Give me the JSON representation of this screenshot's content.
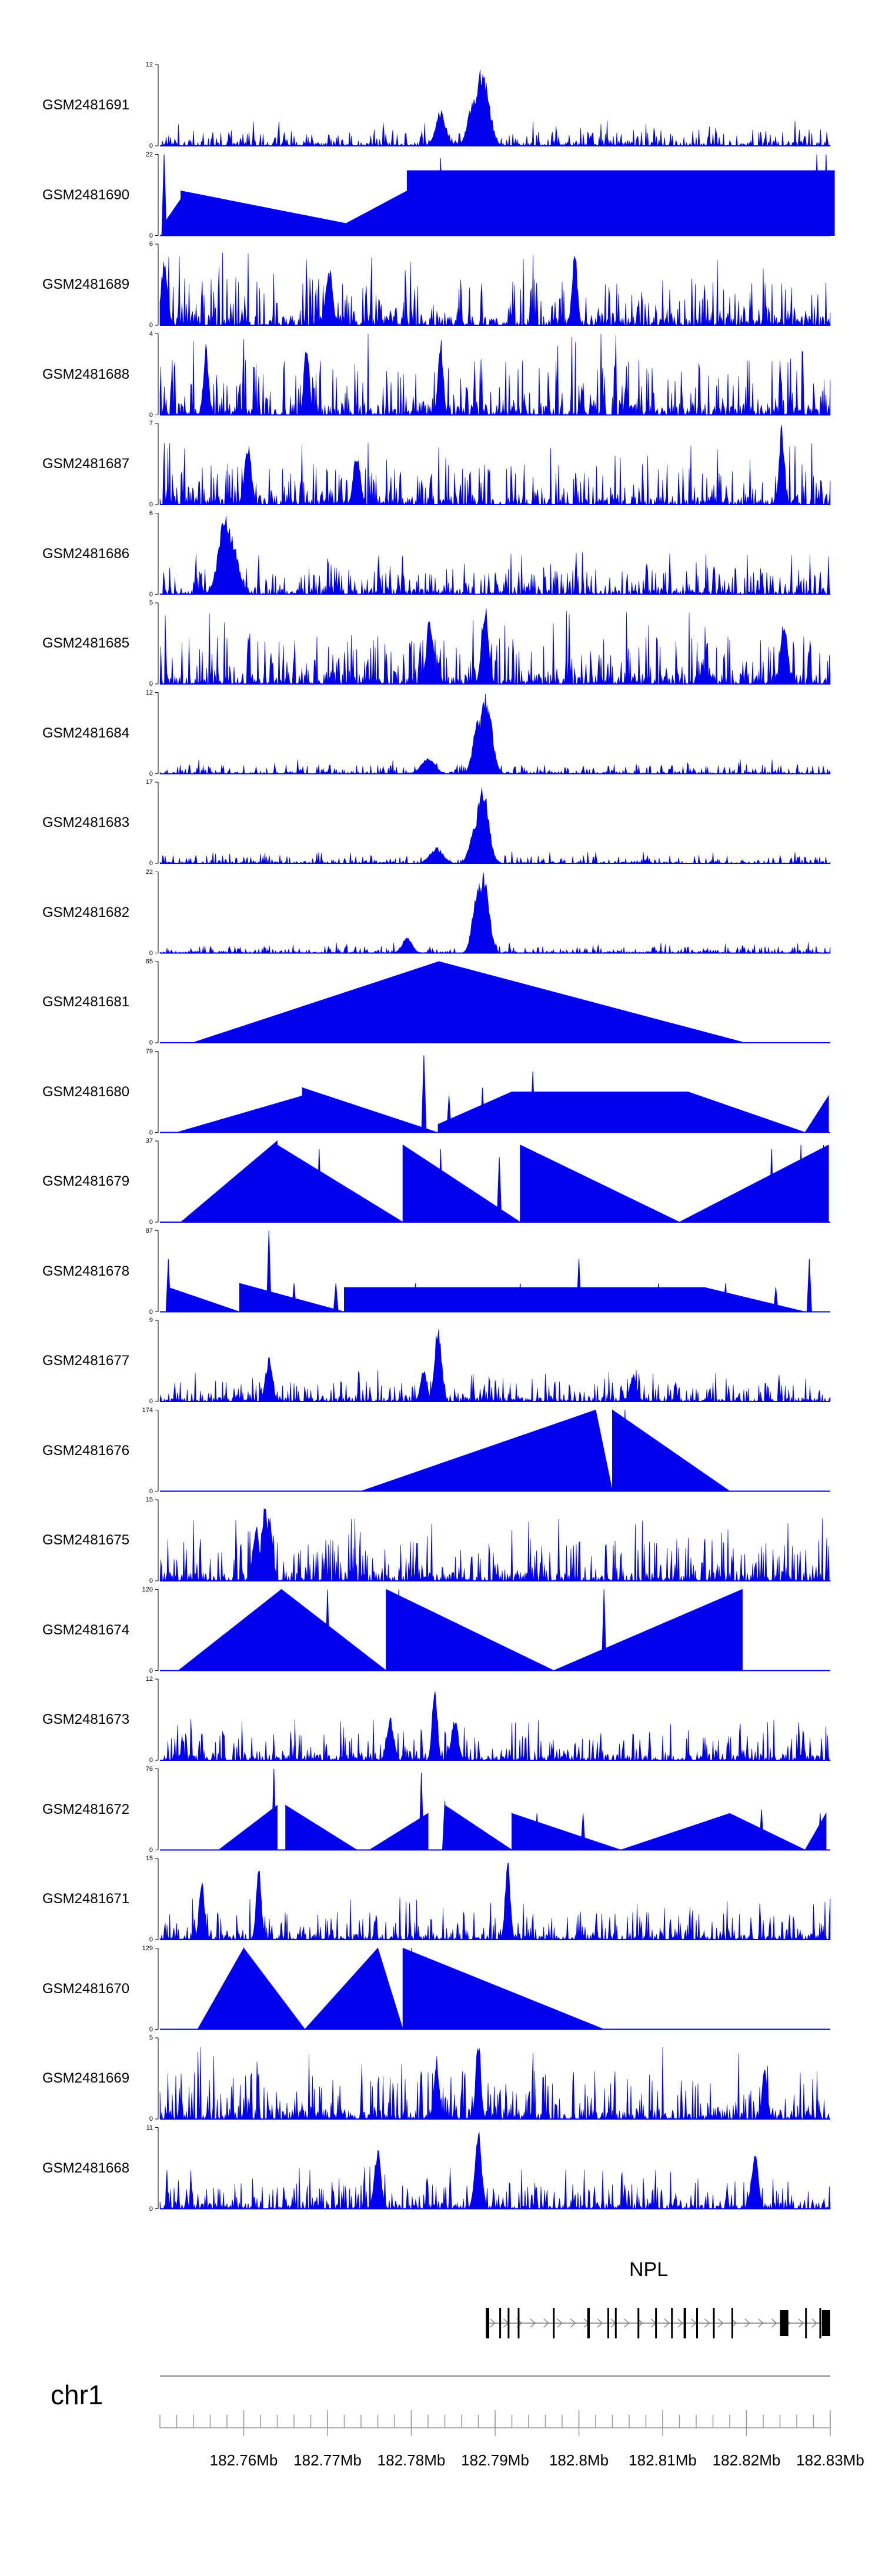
{
  "colors": {
    "signal": "#0000ee",
    "axis": "#000000",
    "gene": "#000000",
    "ideogram": "#888888"
  },
  "chart_data": {
    "type": "area",
    "title": "",
    "xlabel": "",
    "ylabel": "",
    "xlim_mb": [
      182.75,
      182.83
    ],
    "tracks": [
      {
        "name": "GSM2481691",
        "ymin": "0",
        "ymax": "12",
        "shape": "dense",
        "seed": 11,
        "base": 0.12,
        "peaks": [
          [
            182.7884,
            1.0,
            0.0008
          ],
          [
            182.7875,
            0.6,
            0.0007
          ],
          [
            182.7835,
            0.45,
            0.0006
          ]
        ]
      },
      {
        "name": "GSM2481690",
        "ymin": "0",
        "ymax": "22",
        "shape": "hump",
        "seed": 12,
        "humps": [
          [
            182.7505,
            182.7525,
            0.15,
            0.45
          ],
          [
            182.7525,
            182.7795,
            0.55,
            0.0
          ],
          [
            182.7695,
            182.7795,
            0.0,
            0.55
          ],
          [
            182.7795,
            182.8305,
            0.8,
            0.8
          ]
        ],
        "spikes": [
          [
            182.7505,
            1.0
          ],
          [
            182.7795,
            0.55
          ],
          [
            182.7835,
            0.95
          ],
          [
            182.8284,
            1.0
          ],
          [
            182.8295,
            1.0
          ]
        ]
      },
      {
        "name": "GSM2481689",
        "ymin": "0",
        "ymax": "6",
        "shape": "dense",
        "seed": 13,
        "base": 0.35,
        "peaks": [
          [
            182.7995,
            1.0,
            0.0003
          ],
          [
            182.7702,
            0.75,
            0.0004
          ],
          [
            182.7505,
            0.8,
            0.0004
          ]
        ]
      },
      {
        "name": "GSM2481688",
        "ymin": "0",
        "ymax": "4",
        "shape": "dense",
        "seed": 14,
        "base": 0.4,
        "peaks": [
          [
            182.7675,
            0.95,
            0.0003
          ],
          [
            182.7835,
            0.95,
            0.0003
          ],
          [
            182.7555,
            0.9,
            0.0003
          ]
        ]
      },
      {
        "name": "GSM2481687",
        "ymin": "0",
        "ymax": "7",
        "shape": "dense",
        "seed": 15,
        "base": 0.3,
        "peaks": [
          [
            182.8242,
            1.0,
            0.0003
          ],
          [
            182.7605,
            0.8,
            0.0004
          ],
          [
            182.7735,
            0.7,
            0.0004
          ]
        ]
      },
      {
        "name": "GSM2481686",
        "ymin": "0",
        "ymax": "6",
        "shape": "dense",
        "seed": 16,
        "base": 0.2,
        "peaks": [
          [
            182.7578,
            1.0,
            0.0008
          ],
          [
            182.7583,
            0.8,
            0.0009
          ]
        ]
      },
      {
        "name": "GSM2481685",
        "ymin": "0",
        "ymax": "5",
        "shape": "dense",
        "seed": 17,
        "base": 0.35,
        "peaks": [
          [
            182.7888,
            1.0,
            0.0004
          ],
          [
            182.7822,
            0.85,
            0.0004
          ],
          [
            182.8245,
            0.85,
            0.0004
          ]
        ]
      },
      {
        "name": "GSM2481684",
        "ymin": "0",
        "ymax": "12",
        "shape": "dense",
        "seed": 18,
        "base": 0.07,
        "peaks": [
          [
            182.7889,
            1.0,
            0.0007
          ],
          [
            182.788,
            0.7,
            0.0006
          ],
          [
            182.782,
            0.2,
            0.0008
          ]
        ]
      },
      {
        "name": "GSM2481683",
        "ymin": "0",
        "ymax": "17",
        "shape": "dense",
        "seed": 19,
        "base": 0.06,
        "peaks": [
          [
            182.7885,
            1.0,
            0.0007
          ],
          [
            182.7876,
            0.5,
            0.0006
          ],
          [
            182.783,
            0.2,
            0.0008
          ]
        ]
      },
      {
        "name": "GSM2481682",
        "ymin": "0",
        "ymax": "22",
        "shape": "dense",
        "seed": 20,
        "base": 0.05,
        "peaks": [
          [
            182.7887,
            1.0,
            0.0006
          ],
          [
            182.788,
            0.95,
            0.0006
          ],
          [
            182.7795,
            0.2,
            0.0006
          ]
        ]
      },
      {
        "name": "GSM2481681",
        "ymin": "0",
        "ymax": "65",
        "shape": "hump",
        "seed": 21,
        "humps": [
          [
            182.7539,
            182.7833,
            0.0,
            1.0
          ],
          [
            182.7833,
            182.8198,
            1.0,
            0.0
          ]
        ],
        "spikes": []
      },
      {
        "name": "GSM2481680",
        "ymin": "0",
        "ymax": "79",
        "shape": "hump",
        "seed": 22,
        "humps": [
          [
            182.752,
            182.767,
            0.0,
            0.45
          ],
          [
            182.767,
            182.7831,
            0.55,
            0.0
          ],
          [
            182.7832,
            182.792,
            0.1,
            0.5
          ],
          [
            182.792,
            182.803,
            0.5,
            0.5
          ],
          [
            182.803,
            182.813,
            0.5,
            0.5
          ],
          [
            182.813,
            182.827,
            0.5,
            0.0
          ],
          [
            182.827,
            182.8298,
            0.0,
            0.45
          ]
        ],
        "spikes": [
          [
            182.7815,
            0.95
          ],
          [
            182.7845,
            0.45
          ],
          [
            182.7885,
            0.55
          ],
          [
            182.7915,
            0.45
          ],
          [
            182.7945,
            0.75
          ],
          [
            182.7975,
            0.5
          ],
          [
            182.8045,
            0.45
          ],
          [
            182.807,
            0.5
          ]
        ]
      },
      {
        "name": "GSM2481679",
        "ymin": "0",
        "ymax": "37",
        "shape": "hump",
        "seed": 23,
        "humps": [
          [
            182.7525,
            182.764,
            0.0,
            1.0
          ],
          [
            182.764,
            182.779,
            0.95,
            0.0
          ],
          [
            182.779,
            182.793,
            0.95,
            0.0
          ],
          [
            182.793,
            182.812,
            0.95,
            0.0
          ],
          [
            182.812,
            182.8298,
            0.0,
            0.95
          ]
        ],
        "spikes": [
          [
            182.769,
            0.9
          ],
          [
            182.7835,
            0.9
          ],
          [
            182.7905,
            0.8
          ],
          [
            182.823,
            0.9
          ],
          [
            182.8265,
            0.95
          ],
          [
            182.8292,
            0.95
          ]
        ]
      },
      {
        "name": "GSM2481678",
        "ymin": "0",
        "ymax": "87",
        "shape": "hump",
        "seed": 24,
        "humps": [
          [
            182.751,
            182.7595,
            0.3,
            0.0
          ],
          [
            182.7595,
            182.772,
            0.35,
            0.0
          ],
          [
            182.772,
            182.786,
            0.3,
            0.3
          ],
          [
            182.786,
            182.8,
            0.3,
            0.3
          ],
          [
            182.8,
            182.815,
            0.3,
            0.3
          ],
          [
            182.815,
            182.827,
            0.3,
            0.0
          ]
        ],
        "spikes": [
          [
            182.751,
            0.65
          ],
          [
            182.763,
            1.0
          ],
          [
            182.766,
            0.35
          ],
          [
            182.771,
            0.35
          ],
          [
            182.775,
            0.3
          ],
          [
            182.7805,
            0.35
          ],
          [
            182.793,
            0.35
          ],
          [
            182.8,
            0.65
          ],
          [
            182.804,
            0.3
          ],
          [
            182.8095,
            0.35
          ],
          [
            182.8175,
            0.35
          ],
          [
            182.8235,
            0.3
          ],
          [
            182.8275,
            0.65
          ]
        ]
      },
      {
        "name": "GSM2481677",
        "ymin": "0",
        "ymax": "9",
        "shape": "dense",
        "seed": 25,
        "base": 0.15,
        "peaks": [
          [
            182.7832,
            1.0,
            0.0004
          ],
          [
            182.763,
            0.55,
            0.0004
          ],
          [
            182.7815,
            0.4,
            0.0004
          ],
          [
            182.8065,
            0.35,
            0.0004
          ]
        ]
      },
      {
        "name": "GSM2481676",
        "ymin": "0",
        "ymax": "174",
        "shape": "hump",
        "seed": 26,
        "humps": [
          [
            182.774,
            182.802,
            0.0,
            1.0
          ],
          [
            182.802,
            182.804,
            1.0,
            0.0
          ],
          [
            182.804,
            182.818,
            1.0,
            0.0
          ]
        ],
        "spikes": [
          [
            182.8055,
            1.0
          ]
        ]
      },
      {
        "name": "GSM2481675",
        "ymin": "0",
        "ymax": "15",
        "shape": "dense",
        "seed": 27,
        "base": 0.3,
        "peaks": [
          [
            182.7625,
            1.0,
            0.0004
          ],
          [
            182.7615,
            0.7,
            0.0004
          ],
          [
            182.763,
            0.85,
            0.0004
          ]
        ]
      },
      {
        "name": "GSM2481674",
        "ymin": "0",
        "ymax": "120",
        "shape": "hump",
        "seed": 28,
        "humps": [
          [
            182.7522,
            182.7645,
            0.0,
            1.0
          ],
          [
            182.7645,
            182.777,
            1.0,
            0.0
          ],
          [
            182.777,
            182.797,
            1.0,
            0.0
          ],
          [
            182.797,
            182.8195,
            0.0,
            1.0
          ]
        ],
        "spikes": [
          [
            182.77,
            1.0
          ],
          [
            182.7785,
            1.0
          ],
          [
            182.803,
            1.0
          ]
        ]
      },
      {
        "name": "GSM2481673",
        "ymin": "0",
        "ymax": "12",
        "shape": "dense",
        "seed": 29,
        "base": 0.2,
        "peaks": [
          [
            182.7828,
            1.0,
            0.0003
          ],
          [
            182.7775,
            0.55,
            0.0004
          ],
          [
            182.7852,
            0.55,
            0.0004
          ]
        ]
      },
      {
        "name": "GSM2481672",
        "ymin": "0",
        "ymax": "76",
        "shape": "hump",
        "seed": 30,
        "humps": [
          [
            182.757,
            182.764,
            0.0,
            0.55
          ],
          [
            182.765,
            182.7735,
            0.55,
            0.0
          ],
          [
            182.775,
            182.782,
            0.0,
            0.45
          ],
          [
            182.784,
            182.792,
            0.55,
            0.0
          ],
          [
            182.792,
            182.805,
            0.45,
            0.0
          ],
          [
            182.805,
            182.818,
            0.0,
            0.45
          ],
          [
            182.818,
            182.827,
            0.45,
            0.0
          ],
          [
            182.827,
            182.8295,
            0.0,
            0.45
          ]
        ],
        "spikes": [
          [
            182.7636,
            1.0
          ],
          [
            182.7812,
            0.95
          ],
          [
            182.784,
            0.6
          ],
          [
            182.795,
            0.45
          ],
          [
            182.8005,
            0.45
          ],
          [
            182.8218,
            0.5
          ],
          [
            182.8288,
            0.45
          ]
        ]
      },
      {
        "name": "GSM2481671",
        "ymin": "0",
        "ymax": "15",
        "shape": "dense",
        "seed": 31,
        "base": 0.2,
        "peaks": [
          [
            182.7915,
            1.0,
            0.0003
          ],
          [
            182.7618,
            0.95,
            0.0003
          ],
          [
            182.755,
            0.8,
            0.0003
          ]
        ]
      },
      {
        "name": "GSM2481670",
        "ymin": "0",
        "ymax": "129",
        "shape": "hump",
        "seed": 32,
        "humps": [
          [
            182.7545,
            182.76,
            0.0,
            1.0
          ],
          [
            182.76,
            182.7673,
            1.0,
            0.0
          ],
          [
            182.7673,
            182.776,
            0.0,
            1.0
          ],
          [
            182.776,
            182.779,
            1.0,
            0.0
          ],
          [
            182.779,
            182.803,
            1.0,
            0.0
          ]
        ],
        "spikes": [
          [
            182.78,
            1.0
          ],
          [
            182.7805,
            0.75
          ]
        ]
      },
      {
        "name": "GSM2481669",
        "ymin": "0",
        "ymax": "5",
        "shape": "dense",
        "seed": 33,
        "base": 0.35,
        "peaks": [
          [
            182.788,
            1.0,
            0.0003
          ],
          [
            182.783,
            0.8,
            0.0003
          ],
          [
            182.8222,
            0.7,
            0.0003
          ]
        ]
      },
      {
        "name": "GSM2481668",
        "ymin": "0",
        "ymax": "11",
        "shape": "dense",
        "seed": 34,
        "base": 0.2,
        "peaks": [
          [
            182.788,
            1.0,
            0.0004
          ],
          [
            182.776,
            0.75,
            0.0004
          ],
          [
            182.821,
            0.7,
            0.0004
          ]
        ]
      }
    ],
    "gene": {
      "name": "NPL",
      "strand": "+",
      "start_mb": 182.7889,
      "end_mb": 182.83,
      "exons_mb": [
        [
          182.7889,
          182.7893
        ],
        [
          182.7905,
          182.7906
        ],
        [
          182.7915,
          182.7916
        ],
        [
          182.7927,
          182.7928
        ],
        [
          182.7969,
          182.797
        ],
        [
          182.801,
          182.8013
        ],
        [
          182.8034,
          182.8035
        ],
        [
          182.8043,
          182.8045
        ],
        [
          182.807,
          182.8072
        ],
        [
          182.8091,
          182.8092
        ],
        [
          182.811,
          182.8111
        ],
        [
          182.8125,
          182.8128
        ],
        [
          182.814,
          182.8141
        ],
        [
          182.816,
          182.8161
        ],
        [
          182.8182,
          182.8184
        ],
        [
          182.824,
          182.825
        ],
        [
          182.827,
          182.8271
        ],
        [
          182.8287,
          182.8288
        ],
        [
          182.829,
          182.83
        ]
      ]
    },
    "chromosome": "chr1",
    "axis": {
      "ticks_mb": [
        182.76,
        182.77,
        182.78,
        182.79,
        182.8,
        182.81,
        182.82,
        182.83
      ],
      "tick_labels": [
        "182.76Mb",
        "182.77Mb",
        "182.78Mb",
        "182.79Mb",
        "182.8Mb",
        "182.81Mb",
        "182.82Mb",
        "182.83Mb"
      ],
      "minor_step_mb": 0.002
    }
  }
}
